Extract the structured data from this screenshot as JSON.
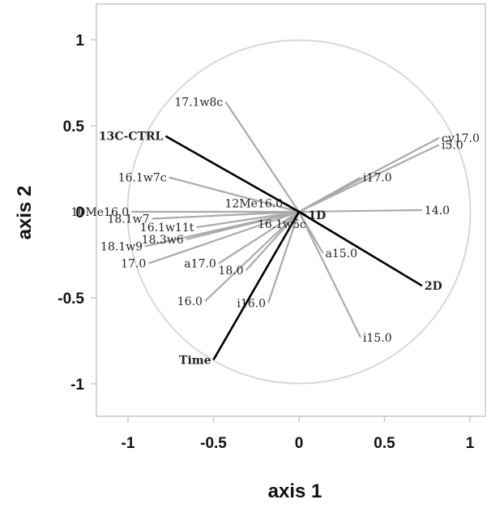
{
  "chart_data": {
    "type": "biplot",
    "xlabel": "axis 1",
    "ylabel": "axis 2",
    "xlim": [
      -1.2,
      1.05
    ],
    "ylim": [
      -1.2,
      1.2
    ],
    "x_ticks": [
      -1,
      -0.5,
      0,
      0.5,
      1
    ],
    "x_tick_labels": [
      "-1",
      "-0.5",
      "0",
      "0.5",
      "1"
    ],
    "y_ticks": [
      1,
      0.5,
      0,
      -0.5,
      -1
    ],
    "y_tick_labels": [
      "1",
      "0.5",
      "0",
      "-0.5",
      "-1"
    ],
    "unit_circle": true,
    "colors": {
      "fatty_acid_vector": "#aaaaaa",
      "factor_vector": "#000000",
      "circle": "#d8d8d8",
      "frame": "#c9c9c9"
    },
    "vectors": [
      {
        "label": "17.1w8c",
        "x": -0.43,
        "y": 0.64,
        "group": "fatty_acid",
        "anchor": "end"
      },
      {
        "label": "16.1w7c",
        "x": -0.76,
        "y": 0.2,
        "group": "fatty_acid",
        "anchor": "end"
      },
      {
        "label": "12Me16.0",
        "x": -0.08,
        "y": 0.05,
        "group": "fatty_acid",
        "anchor": "end"
      },
      {
        "label": "10Me16.0",
        "x": -0.98,
        "y": 0.0,
        "group": "fatty_acid",
        "anchor": "end"
      },
      {
        "label": "18.1w7",
        "x": -0.86,
        "y": -0.04,
        "group": "fatty_acid",
        "anchor": "end"
      },
      {
        "label": "16.1w11t",
        "x": -0.6,
        "y": -0.09,
        "group": "fatty_acid",
        "anchor": "end"
      },
      {
        "label": "16.1w5c",
        "x": -0.1,
        "y": -0.07,
        "group": "fatty_acid",
        "anchor": "middle"
      },
      {
        "label": "18.3w6",
        "x": -0.66,
        "y": -0.16,
        "group": "fatty_acid",
        "anchor": "end"
      },
      {
        "label": "18.1w9",
        "x": -0.9,
        "y": -0.2,
        "group": "fatty_acid",
        "anchor": "end"
      },
      {
        "label": "17.0",
        "x": -0.88,
        "y": -0.3,
        "group": "fatty_acid",
        "anchor": "end"
      },
      {
        "label": "a17.0",
        "x": -0.47,
        "y": -0.3,
        "group": "fatty_acid",
        "anchor": "end"
      },
      {
        "label": "18.0",
        "x": -0.31,
        "y": -0.34,
        "group": "fatty_acid",
        "anchor": "end"
      },
      {
        "label": "16.0",
        "x": -0.55,
        "y": -0.52,
        "group": "fatty_acid",
        "anchor": "end"
      },
      {
        "label": "i16.0",
        "x": -0.18,
        "y": -0.53,
        "group": "fatty_acid",
        "anchor": "end"
      },
      {
        "label": "cy17.0",
        "x": 0.82,
        "y": 0.43,
        "group": "fatty_acid",
        "anchor": "start"
      },
      {
        "label": "i5.0",
        "x": 0.82,
        "y": 0.39,
        "group": "fatty_acid",
        "anchor": "start"
      },
      {
        "label": "i17.0",
        "x": 0.36,
        "y": 0.2,
        "group": "fatty_acid",
        "anchor": "start"
      },
      {
        "label": "14.0",
        "x": 0.72,
        "y": 0.01,
        "group": "fatty_acid",
        "anchor": "start"
      },
      {
        "label": "a15.0",
        "x": 0.14,
        "y": -0.24,
        "group": "fatty_acid",
        "anchor": "start"
      },
      {
        "label": "i15.0",
        "x": 0.36,
        "y": -0.73,
        "group": "fatty_acid",
        "anchor": "start"
      },
      {
        "label": "13C-CTRL",
        "x": -0.78,
        "y": 0.44,
        "group": "factor",
        "anchor": "end"
      },
      {
        "label": "1D",
        "x": 0.04,
        "y": -0.02,
        "group": "factor",
        "anchor": "start"
      },
      {
        "label": "2D",
        "x": 0.72,
        "y": -0.43,
        "group": "factor",
        "anchor": "start"
      },
      {
        "label": "Time",
        "x": -0.5,
        "y": -0.86,
        "group": "factor",
        "anchor": "end"
      }
    ]
  }
}
